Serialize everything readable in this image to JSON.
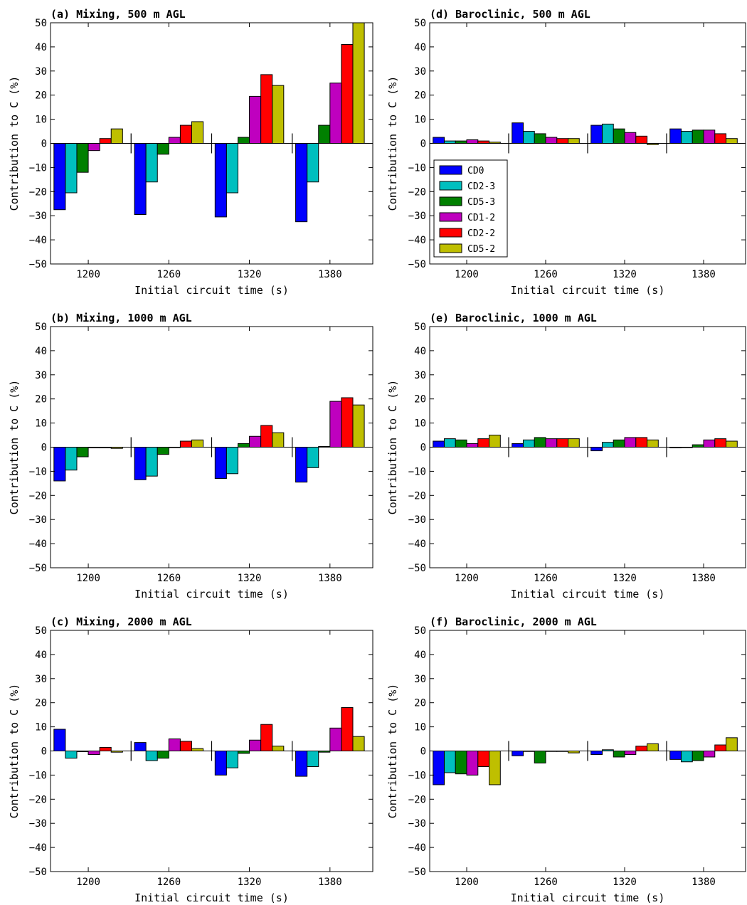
{
  "chart_data": [
    {
      "type": "bar",
      "title": "(a) Mixing, 500 m AGL",
      "xlabel": "Initial circuit time (s)",
      "ylabel": "Contribution to C (%)",
      "ylim": [
        -50,
        50
      ],
      "yticks": [
        -50,
        -40,
        -30,
        -20,
        -10,
        0,
        10,
        20,
        30,
        40,
        50
      ],
      "categories": [
        "1200",
        "1260",
        "1320",
        "1380"
      ],
      "grid": false,
      "series": [
        {
          "name": "CD0",
          "values": [
            -27.5,
            -29.5,
            -30.5,
            -32.5
          ]
        },
        {
          "name": "CD2-3",
          "values": [
            -20.5,
            -16,
            -20.5,
            -16
          ]
        },
        {
          "name": "CD5-3",
          "values": [
            -12,
            -4.5,
            2.5,
            7.5
          ]
        },
        {
          "name": "CD1-2",
          "values": [
            -3,
            2.5,
            19.5,
            25
          ]
        },
        {
          "name": "CD2-2",
          "values": [
            2,
            7.5,
            28.5,
            41
          ]
        },
        {
          "name": "CD5-2",
          "values": [
            6,
            9,
            24,
            50
          ]
        }
      ]
    },
    {
      "type": "bar",
      "title": "(b) Mixing, 1000 m AGL",
      "xlabel": "Initial circuit time (s)",
      "ylabel": "Contribution to C (%)",
      "ylim": [
        -50,
        50
      ],
      "yticks": [
        -50,
        -40,
        -30,
        -20,
        -10,
        0,
        10,
        20,
        30,
        40,
        50
      ],
      "categories": [
        "1200",
        "1260",
        "1320",
        "1380"
      ],
      "grid": false,
      "series": [
        {
          "name": "CD0",
          "values": [
            -14,
            -13.5,
            -13,
            -14.5
          ]
        },
        {
          "name": "CD2-3",
          "values": [
            -9.5,
            -12,
            -11,
            -8.5
          ]
        },
        {
          "name": "CD5-3",
          "values": [
            -4,
            -3,
            1.5,
            0.3
          ]
        },
        {
          "name": "CD1-2",
          "values": [
            -0.3,
            -0.2,
            4.5,
            19
          ]
        },
        {
          "name": "CD2-2",
          "values": [
            -0.3,
            2.5,
            9,
            20.5
          ]
        },
        {
          "name": "CD5-2",
          "values": [
            -0.5,
            3,
            6,
            17.5
          ]
        }
      ]
    },
    {
      "type": "bar",
      "title": "(c) Mixing, 2000 m AGL",
      "xlabel": "Initial circuit time (s)",
      "ylabel": "Contribution to C (%)",
      "ylim": [
        -50,
        50
      ],
      "yticks": [
        -50,
        -40,
        -30,
        -20,
        -10,
        0,
        10,
        20,
        30,
        40,
        50
      ],
      "categories": [
        "1200",
        "1260",
        "1320",
        "1380"
      ],
      "grid": false,
      "series": [
        {
          "name": "CD0",
          "values": [
            9,
            3.5,
            -10,
            -10.5
          ]
        },
        {
          "name": "CD2-3",
          "values": [
            -3,
            -4,
            -7,
            -6.5
          ]
        },
        {
          "name": "CD5-3",
          "values": [
            -0.3,
            -3,
            -1,
            -0.5
          ]
        },
        {
          "name": "CD1-2",
          "values": [
            -1.5,
            5,
            4.5,
            9.5
          ]
        },
        {
          "name": "CD2-2",
          "values": [
            1.5,
            4,
            11,
            18
          ]
        },
        {
          "name": "CD5-2",
          "values": [
            -0.5,
            1,
            2,
            6
          ]
        }
      ]
    },
    {
      "type": "bar",
      "title": "(d) Baroclinic, 500 m AGL",
      "xlabel": "Initial circuit time (s)",
      "ylabel": "Contribution to C (%)",
      "ylim": [
        -50,
        50
      ],
      "yticks": [
        -50,
        -40,
        -30,
        -20,
        -10,
        0,
        10,
        20,
        30,
        40,
        50
      ],
      "categories": [
        "1200",
        "1260",
        "1320",
        "1380"
      ],
      "grid": false,
      "legend": "upper-left",
      "series": [
        {
          "name": "CD0",
          "values": [
            2.5,
            8.5,
            7.5,
            6
          ]
        },
        {
          "name": "CD2-3",
          "values": [
            1,
            5,
            8,
            5
          ]
        },
        {
          "name": "CD5-3",
          "values": [
            1,
            4,
            6,
            5.5
          ]
        },
        {
          "name": "CD1-2",
          "values": [
            1.5,
            2.5,
            4.5,
            5.5
          ]
        },
        {
          "name": "CD2-2",
          "values": [
            1,
            2,
            3,
            4
          ]
        },
        {
          "name": "CD5-2",
          "values": [
            0.5,
            2,
            -0.5,
            2
          ]
        }
      ]
    },
    {
      "type": "bar",
      "title": "(e) Baroclinic, 1000 m AGL",
      "xlabel": "Initial circuit time (s)",
      "ylabel": "Contribution to C (%)",
      "ylim": [
        -50,
        50
      ],
      "yticks": [
        -50,
        -40,
        -30,
        -20,
        -10,
        0,
        10,
        20,
        30,
        40,
        50
      ],
      "categories": [
        "1200",
        "1260",
        "1320",
        "1380"
      ],
      "grid": false,
      "series": [
        {
          "name": "CD0",
          "values": [
            2.5,
            1.5,
            -1.5,
            -0.3
          ]
        },
        {
          "name": "CD2-3",
          "values": [
            3.5,
            3,
            2,
            -0.2
          ]
        },
        {
          "name": "CD5-3",
          "values": [
            3,
            4,
            3,
            1
          ]
        },
        {
          "name": "CD1-2",
          "values": [
            1.5,
            3.5,
            4,
            3
          ]
        },
        {
          "name": "CD2-2",
          "values": [
            3.5,
            3.5,
            4,
            3.5
          ]
        },
        {
          "name": "CD5-2",
          "values": [
            5,
            3.5,
            3,
            2.5
          ]
        }
      ]
    },
    {
      "type": "bar",
      "title": "(f) Baroclinic, 2000 m AGL",
      "xlabel": "Initial circuit time (s)",
      "ylabel": "Contribution to C (%)",
      "ylim": [
        -50,
        50
      ],
      "yticks": [
        -50,
        -40,
        -30,
        -20,
        -10,
        0,
        10,
        20,
        30,
        40,
        50
      ],
      "categories": [
        "1200",
        "1260",
        "1320",
        "1380"
      ],
      "grid": false,
      "series": [
        {
          "name": "CD0",
          "values": [
            -14,
            -2,
            -1.5,
            -3.5
          ]
        },
        {
          "name": "CD2-3",
          "values": [
            -9,
            -0.2,
            0.5,
            -4.5
          ]
        },
        {
          "name": "CD5-3",
          "values": [
            -9.5,
            -5,
            -2.5,
            -4
          ]
        },
        {
          "name": "CD1-2",
          "values": [
            -10,
            -0.2,
            -1.5,
            -2.5
          ]
        },
        {
          "name": "CD2-2",
          "values": [
            -6.5,
            -0.2,
            2,
            2.5
          ]
        },
        {
          "name": "CD5-2",
          "values": [
            -14,
            -0.8,
            3,
            5.5
          ]
        }
      ]
    }
  ],
  "colors": {
    "CD0": "#0000ff",
    "CD2-3": "#00bfbf",
    "CD5-3": "#008000",
    "CD1-2": "#bf00bf",
    "CD2-2": "#ff0000",
    "CD5-2": "#bfbf00"
  }
}
